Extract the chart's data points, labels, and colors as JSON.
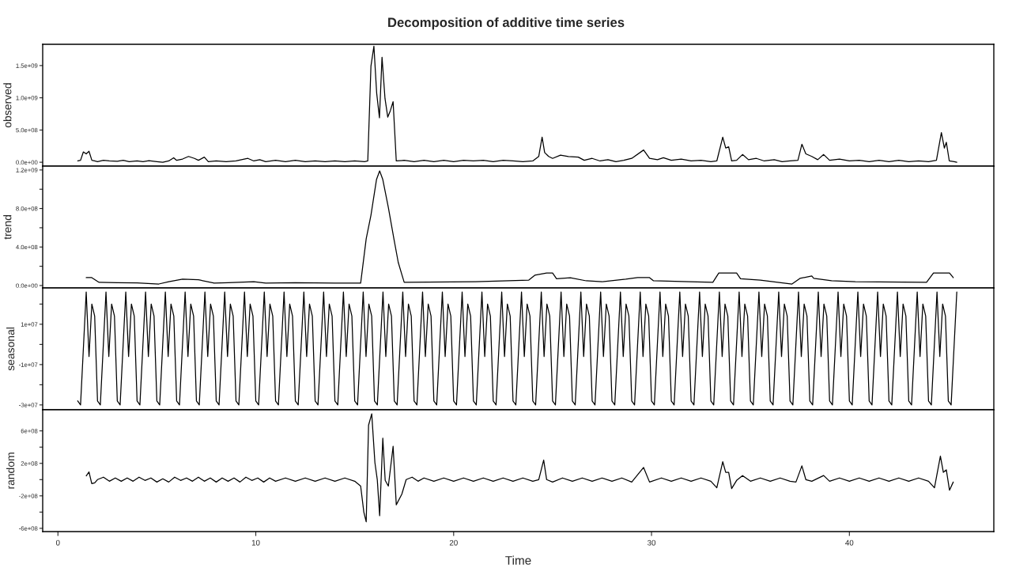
{
  "chart_data": [
    {
      "type": "line",
      "title": "Decomposition of additive time series",
      "ylabel": "observed",
      "tick_labels": "y",
      "xlim": [
        -0.77,
        47.3
      ],
      "ylim": [
        -60000000,
        1830000000
      ],
      "yticks": [
        {
          "value": 0,
          "label": "0.0e+00"
        },
        {
          "value": 500000000,
          "label": "5.0e+08"
        },
        {
          "value": 1000000000,
          "label": "1.0e+09"
        },
        {
          "value": 1500000000,
          "label": "1.5e+09"
        }
      ],
      "series": [
        {
          "color": "#000000",
          "x": [
            1.0,
            1.143,
            1.286,
            1.429,
            1.571,
            1.714,
            1.857,
            2.0,
            2.3,
            2.6,
            3.0,
            3.3,
            3.6,
            4.0,
            4.3,
            4.6,
            5.0,
            5.3,
            5.6,
            5.85,
            6.0,
            6.3,
            6.6,
            6.9,
            7.1,
            7.4,
            7.6,
            8.0,
            8.5,
            9.0,
            9.6,
            9.9,
            10.2,
            10.5,
            11.0,
            11.5,
            12.0,
            12.5,
            13.0,
            13.5,
            14.0,
            14.5,
            15.0,
            15.5,
            15.66,
            15.82,
            15.97,
            16.11,
            16.25,
            16.38,
            16.53,
            16.67,
            16.8,
            16.94,
            17.1,
            17.5,
            18,
            18.5,
            19,
            19.5,
            20,
            20.5,
            21,
            21.5,
            22,
            22.5,
            23,
            23.5,
            24.0,
            24.3,
            24.47,
            24.6,
            24.8,
            25.0,
            25.4,
            25.8,
            26.3,
            26.6,
            27,
            27.4,
            27.8,
            28.2,
            28.6,
            29.0,
            29.6,
            29.9,
            30.3,
            30.6,
            31,
            31.5,
            32,
            32.5,
            33.0,
            33.3,
            33.6,
            33.75,
            33.9,
            34.05,
            34.3,
            34.6,
            34.9,
            35.3,
            35.7,
            36.2,
            36.6,
            37.0,
            37.4,
            37.6,
            37.8,
            38.1,
            38.4,
            38.7,
            39.0,
            39.5,
            40,
            40.5,
            41,
            41.5,
            42,
            42.5,
            43,
            43.5,
            44.0,
            44.4,
            44.65,
            44.8,
            44.9,
            45.05,
            45.3,
            45.43
          ],
          "values": [
            20000000.0,
            30000000.0,
            160000000.0,
            130000000.0,
            170000000.0,
            30000000.0,
            20000000.0,
            10000000.0,
            30000000.0,
            20000000.0,
            15000000.0,
            30000000.0,
            10000000.0,
            20000000.0,
            10000000.0,
            25000000.0,
            10000000.0,
            0,
            20000000.0,
            70000000.0,
            30000000.0,
            50000000.0,
            90000000.0,
            60000000.0,
            30000000.0,
            80000000.0,
            10000000.0,
            20000000.0,
            10000000.0,
            20000000.0,
            60000000.0,
            20000000.0,
            40000000.0,
            10000000.0,
            30000000.0,
            10000000.0,
            30000000.0,
            10000000.0,
            20000000.0,
            10000000.0,
            20000000.0,
            10000000.0,
            20000000.0,
            10000000.0,
            20000000.0,
            1490000000.0,
            1800000000.0,
            1070000000.0,
            690000000.0,
            1630000000.0,
            990000000.0,
            700000000.0,
            800000000.0,
            940000000.0,
            20000000.0,
            30000000.0,
            10000000.0,
            30000000.0,
            10000000.0,
            30000000.0,
            10000000.0,
            30000000.0,
            20000000.0,
            30000000.0,
            10000000.0,
            30000000.0,
            20000000.0,
            10000000.0,
            20000000.0,
            90000000.0,
            390000000.0,
            150000000.0,
            90000000.0,
            60000000.0,
            110000000.0,
            90000000.0,
            80000000.0,
            30000000.0,
            60000000.0,
            20000000.0,
            40000000.0,
            10000000.0,
            30000000.0,
            60000000.0,
            190000000.0,
            60000000.0,
            40000000.0,
            70000000.0,
            30000000.0,
            50000000.0,
            20000000.0,
            30000000.0,
            10000000.0,
            20000000.0,
            390000000.0,
            220000000.0,
            240000000.0,
            20000000.0,
            30000000.0,
            120000000.0,
            40000000.0,
            60000000.0,
            20000000.0,
            40000000.0,
            10000000.0,
            20000000.0,
            30000000.0,
            280000000.0,
            130000000.0,
            90000000.0,
            40000000.0,
            120000000.0,
            30000000.0,
            50000000.0,
            20000000.0,
            30000000.0,
            10000000.0,
            30000000.0,
            10000000.0,
            30000000.0,
            10000000.0,
            20000000.0,
            10000000.0,
            30000000.0,
            460000000.0,
            220000000.0,
            310000000.0,
            20000000.0,
            10000000.0,
            0
          ]
        }
      ]
    },
    {
      "type": "line",
      "ylabel": "trend",
      "tick_labels": "y",
      "xlim": [
        -0.77,
        47.3
      ],
      "ylim": [
        -25000000,
        1240000000
      ],
      "yticks": [
        {
          "value": 0,
          "label": "0.0e+00"
        },
        {
          "value": 200000000,
          "label": null
        },
        {
          "value": 400000000,
          "label": "4.0e+08"
        },
        {
          "value": 600000000,
          "label": null
        },
        {
          "value": 800000000,
          "label": "8.0e+08"
        },
        {
          "value": 1000000000,
          "label": null
        },
        {
          "value": 1200000000,
          "label": "1.2e+09"
        }
      ],
      "series": [
        {
          "color": "#000000",
          "x": [
            1.43,
            1.71,
            2.08,
            3,
            4,
            5.1,
            5.6,
            6.3,
            7.1,
            7.9,
            8.6,
            9.9,
            10.5,
            12,
            14,
            15.3,
            15.58,
            15.82,
            16.1,
            16.26,
            16.42,
            16.7,
            16.98,
            17.2,
            17.5,
            21.1,
            23.8,
            24.1,
            24.7,
            25.0,
            25.2,
            25.9,
            26.7,
            27.5,
            28.7,
            29.3,
            29.9,
            30.1,
            31.9,
            33.1,
            33.4,
            34.3,
            34.5,
            35.5,
            36.7,
            37.1,
            37.5,
            38.1,
            38.2,
            39.1,
            40.3,
            43.9,
            44.25,
            45.06,
            45.25
          ],
          "values": [
            82000000.0,
            82000000.0,
            33000000.0,
            30000000.0,
            28000000.0,
            16000000.0,
            40000000.0,
            66000000.0,
            60000000.0,
            25000000.0,
            30000000.0,
            40000000.0,
            25000000.0,
            30000000.0,
            25000000.0,
            25000000.0,
            485000000.0,
            730000000.0,
            1100000000.0,
            1190000000.0,
            1100000000.0,
            810000000.0,
            485000000.0,
            240000000.0,
            33000000.0,
            40000000.0,
            57000000.0,
            107000000.0,
            130000000.0,
            130000000.0,
            70000000.0,
            80000000.0,
            49000000.0,
            40000000.0,
            66000000.0,
            82000000.0,
            82000000.0,
            49000000.0,
            40000000.0,
            33000000.0,
            130000000.0,
            130000000.0,
            70000000.0,
            57000000.0,
            25000000.0,
            16000000.0,
            74000000.0,
            99000000.0,
            74000000.0,
            49000000.0,
            40000000.0,
            33000000.0,
            130000000.0,
            130000000.0,
            82000000.0
          ]
        }
      ]
    },
    {
      "type": "line",
      "ylabel": "seasonal",
      "tick_labels": "y",
      "xlim": [
        -0.77,
        47.3
      ],
      "ylim": [
        -32400000,
        28000000
      ],
      "yticks": [
        {
          "value": -30000000,
          "label": "-3e+07"
        },
        {
          "value": -20000000,
          "label": null
        },
        {
          "value": -10000000,
          "label": "-1e+07"
        },
        {
          "value": 0,
          "label": null
        },
        {
          "value": 10000000,
          "label": "1e+07"
        },
        {
          "value": 20000000,
          "label": null
        }
      ],
      "series": [
        {
          "color": "#000000",
          "x": [
            1,
            1.143,
            1.286,
            1.429,
            1.571,
            1.714,
            1.857,
            2,
            2.143,
            2.286,
            2.429,
            2.571,
            2.714,
            2.857,
            3,
            3.143,
            3.286,
            3.429,
            3.571,
            3.714,
            3.857,
            4,
            4.143,
            4.286,
            4.429,
            4.571,
            4.714,
            4.857,
            5,
            5.143,
            5.286,
            5.429,
            5.571,
            5.714,
            5.857,
            6,
            6.143,
            6.286,
            6.429,
            6.571,
            6.714,
            6.857,
            7,
            7.143,
            7.286,
            7.429,
            7.571,
            7.714,
            7.857,
            8,
            8.143,
            8.286,
            8.429,
            8.571,
            8.714,
            8.857,
            9,
            9.143,
            9.286,
            9.429,
            9.571,
            9.714,
            9.857,
            10,
            10.143,
            10.286,
            10.429,
            10.571,
            10.714,
            10.857,
            11,
            11.143,
            11.286,
            11.429,
            11.571,
            11.714,
            11.857,
            12,
            12.143,
            12.286,
            12.429,
            12.571,
            12.714,
            12.857,
            13,
            13.143,
            13.286,
            13.429,
            13.571,
            13.714,
            13.857,
            14,
            14.143,
            14.286,
            14.429,
            14.571,
            14.714,
            14.857,
            15,
            15.143,
            15.286,
            15.429,
            15.571,
            15.714,
            15.857,
            16,
            16.143,
            16.286,
            16.429,
            16.571,
            16.714,
            16.857,
            17,
            17.143,
            17.286,
            17.429,
            17.571,
            17.714,
            17.857,
            18,
            18.143,
            18.286,
            18.429,
            18.571,
            18.714,
            18.857,
            19,
            19.143,
            19.286,
            19.429,
            19.571,
            19.714,
            19.857,
            20,
            20.143,
            20.286,
            20.429,
            20.571,
            20.714,
            20.857,
            21,
            21.143,
            21.286,
            21.429,
            21.571,
            21.714,
            21.857,
            22,
            22.143,
            22.286,
            22.429,
            22.571,
            22.714,
            22.857,
            23,
            23.143,
            23.286,
            23.429,
            23.571,
            23.714,
            23.857,
            24,
            24.143,
            24.286,
            24.429,
            24.571,
            24.714,
            24.857,
            25,
            25.143,
            25.286,
            25.429,
            25.571,
            25.714,
            25.857,
            26,
            26.143,
            26.286,
            26.429,
            26.571,
            26.714,
            26.857,
            27,
            27.143,
            27.286,
            27.429,
            27.571,
            27.714,
            27.857,
            28,
            28.143,
            28.286,
            28.429,
            28.571,
            28.714,
            28.857,
            29,
            29.143,
            29.286,
            29.429,
            29.571,
            29.714,
            29.857,
            30,
            30.143,
            30.286,
            30.429,
            30.571,
            30.714,
            30.857,
            31,
            31.143,
            31.286,
            31.429,
            31.571,
            31.714,
            31.857,
            32,
            32.143,
            32.286,
            32.429,
            32.571,
            32.714,
            32.857,
            33,
            33.143,
            33.286,
            33.429,
            33.571,
            33.714,
            33.857,
            34,
            34.143,
            34.286,
            34.429,
            34.571,
            34.714,
            34.857,
            35,
            35.143,
            35.286,
            35.429,
            35.571,
            35.714,
            35.857,
            36,
            36.143,
            36.286,
            36.429,
            36.571,
            36.714,
            36.857,
            37,
            37.143,
            37.286,
            37.429,
            37.571,
            37.714,
            37.857,
            38,
            38.143,
            38.286,
            38.429,
            38.571,
            38.714,
            38.857,
            39,
            39.143,
            39.286,
            39.429,
            39.571,
            39.714,
            39.857,
            40,
            40.143,
            40.286,
            40.429,
            40.571,
            40.714,
            40.857,
            41,
            41.143,
            41.286,
            41.429,
            41.571,
            41.714,
            41.857,
            42,
            42.143,
            42.286,
            42.429,
            42.571,
            42.714,
            42.857,
            43,
            43.143,
            43.286,
            43.429,
            43.571,
            43.714,
            43.857,
            44,
            44.143,
            44.286,
            44.429,
            44.571,
            44.714,
            44.857,
            45,
            45.143,
            45.286,
            45.429
          ],
          "values": [
            -28000000.0,
            -30000000.0,
            -2000000.0,
            26000000.0,
            -6000000.0,
            20000000.0,
            14000000.0,
            -28000000.0,
            -30000000.0,
            -2000000.0,
            26000000.0,
            -6000000.0,
            20000000.0,
            14000000.0,
            -28000000.0,
            -30000000.0,
            -2000000.0,
            26000000.0,
            -6000000.0,
            20000000.0,
            14000000.0,
            -28000000.0,
            -30000000.0,
            -2000000.0,
            26000000.0,
            -6000000.0,
            20000000.0,
            14000000.0,
            -28000000.0,
            -30000000.0,
            -2000000.0,
            26000000.0,
            -6000000.0,
            20000000.0,
            14000000.0,
            -28000000.0,
            -30000000.0,
            -2000000.0,
            26000000.0,
            -6000000.0,
            20000000.0,
            14000000.0,
            -28000000.0,
            -30000000.0,
            -2000000.0,
            26000000.0,
            -6000000.0,
            20000000.0,
            14000000.0,
            -28000000.0,
            -30000000.0,
            -2000000.0,
            26000000.0,
            -6000000.0,
            20000000.0,
            14000000.0,
            -28000000.0,
            -30000000.0,
            -2000000.0,
            26000000.0,
            -6000000.0,
            20000000.0,
            14000000.0,
            -28000000.0,
            -30000000.0,
            -2000000.0,
            26000000.0,
            -6000000.0,
            20000000.0,
            14000000.0,
            -28000000.0,
            -30000000.0,
            -2000000.0,
            26000000.0,
            -6000000.0,
            20000000.0,
            14000000.0,
            -28000000.0,
            -30000000.0,
            -2000000.0,
            26000000.0,
            -6000000.0,
            20000000.0,
            14000000.0,
            -28000000.0,
            -30000000.0,
            -2000000.0,
            26000000.0,
            -6000000.0,
            20000000.0,
            14000000.0,
            -28000000.0,
            -30000000.0,
            -2000000.0,
            26000000.0,
            -6000000.0,
            20000000.0,
            14000000.0,
            -28000000.0,
            -30000000.0,
            -2000000.0,
            26000000.0,
            -6000000.0,
            20000000.0,
            14000000.0,
            -28000000.0,
            -30000000.0,
            -2000000.0,
            26000000.0,
            -6000000.0,
            20000000.0,
            14000000.0,
            -28000000.0,
            -30000000.0,
            -2000000.0,
            26000000.0,
            -6000000.0,
            20000000.0,
            14000000.0,
            -28000000.0,
            -30000000.0,
            -2000000.0,
            26000000.0,
            -6000000.0,
            20000000.0,
            14000000.0,
            -28000000.0,
            -30000000.0,
            -2000000.0,
            26000000.0,
            -6000000.0,
            20000000.0,
            14000000.0,
            -28000000.0,
            -30000000.0,
            -2000000.0,
            26000000.0,
            -6000000.0,
            20000000.0,
            14000000.0,
            -28000000.0,
            -30000000.0,
            -2000000.0,
            26000000.0,
            -6000000.0,
            20000000.0,
            14000000.0,
            -28000000.0,
            -30000000.0,
            -2000000.0,
            26000000.0,
            -6000000.0,
            20000000.0,
            14000000.0,
            -28000000.0,
            -30000000.0,
            -2000000.0,
            26000000.0,
            -6000000.0,
            20000000.0,
            14000000.0,
            -28000000.0,
            -30000000.0,
            -2000000.0,
            26000000.0,
            -6000000.0,
            20000000.0,
            14000000.0,
            -28000000.0,
            -30000000.0,
            -2000000.0,
            26000000.0,
            -6000000.0,
            20000000.0,
            14000000.0,
            -28000000.0,
            -30000000.0,
            -2000000.0,
            26000000.0,
            -6000000.0,
            20000000.0,
            14000000.0,
            -28000000.0,
            -30000000.0,
            -2000000.0,
            26000000.0,
            -6000000.0,
            20000000.0,
            14000000.0,
            -28000000.0,
            -30000000.0,
            -2000000.0,
            26000000.0,
            -6000000.0,
            20000000.0,
            14000000.0,
            -28000000.0,
            -30000000.0,
            -2000000.0,
            26000000.0,
            -6000000.0,
            20000000.0,
            14000000.0,
            -28000000.0,
            -30000000.0,
            -2000000.0,
            26000000.0,
            -6000000.0,
            20000000.0,
            14000000.0,
            -28000000.0,
            -30000000.0,
            -2000000.0,
            26000000.0,
            -6000000.0,
            20000000.0,
            14000000.0,
            -28000000.0,
            -30000000.0,
            -2000000.0,
            26000000.0,
            -6000000.0,
            20000000.0,
            14000000.0,
            -28000000.0,
            -30000000.0,
            -2000000.0,
            26000000.0,
            -6000000.0,
            20000000.0,
            14000000.0,
            -28000000.0,
            -30000000.0,
            -2000000.0,
            26000000.0,
            -6000000.0,
            20000000.0,
            14000000.0,
            -28000000.0,
            -30000000.0,
            -2000000.0,
            26000000.0,
            -6000000.0,
            20000000.0,
            14000000.0,
            -28000000.0,
            -30000000.0,
            -2000000.0,
            26000000.0,
            -6000000.0,
            20000000.0,
            14000000.0,
            -28000000.0,
            -30000000.0,
            -2000000.0,
            26000000.0,
            -6000000.0,
            20000000.0,
            14000000.0,
            -28000000.0,
            -30000000.0,
            -2000000.0,
            26000000.0,
            -6000000.0,
            20000000.0,
            14000000.0,
            -28000000.0,
            -30000000.0,
            -2000000.0,
            26000000.0,
            -6000000.0,
            20000000.0,
            14000000.0,
            -28000000.0,
            -30000000.0,
            -2000000.0,
            26000000.0,
            -6000000.0,
            20000000.0,
            14000000.0,
            -28000000.0,
            -30000000.0,
            -2000000.0,
            26000000.0,
            -6000000.0,
            20000000.0,
            14000000.0,
            -28000000.0,
            -30000000.0,
            -2000000.0,
            26000000.0,
            -6000000.0,
            20000000.0,
            14000000.0,
            -28000000.0,
            -30000000.0,
            -2000000.0,
            26000000.0,
            -6000000.0,
            20000000.0,
            14000000.0,
            -28000000.0,
            -30000000.0,
            -2000000.0,
            26000000.0,
            -6000000.0,
            20000000.0,
            14000000.0,
            -28000000.0,
            -30000000.0,
            -2000000.0,
            26000000.0
          ]
        }
      ]
    },
    {
      "type": "line",
      "ylabel": "random",
      "xlabel": "Time",
      "xlim": [
        -0.77,
        47.3
      ],
      "ylim": [
        -640000000,
        860000000
      ],
      "xticks": [
        0,
        10,
        20,
        30,
        40
      ],
      "yticks": [
        {
          "value": -600000000,
          "label": "-6e+08"
        },
        {
          "value": -400000000,
          "label": null
        },
        {
          "value": -200000000,
          "label": "-2e+08"
        },
        {
          "value": 0,
          "label": null
        },
        {
          "value": 200000000,
          "label": "2e+08"
        },
        {
          "value": 400000000,
          "label": null
        },
        {
          "value": 600000000,
          "label": "6e+08"
        }
      ],
      "series": [
        {
          "color": "#000000",
          "x": [
            1.43,
            1.57,
            1.71,
            1.86,
            2.0,
            2.3,
            2.6,
            2.9,
            3.2,
            3.5,
            3.8,
            4.1,
            4.4,
            4.7,
            5.0,
            5.3,
            5.6,
            5.9,
            6.2,
            6.5,
            6.8,
            7.1,
            7.4,
            7.7,
            8.0,
            8.3,
            8.6,
            8.9,
            9.2,
            9.5,
            9.8,
            10.1,
            10.4,
            10.7,
            11,
            11.5,
            12,
            12.5,
            13,
            13.5,
            14,
            14.5,
            15,
            15.3,
            15.46,
            15.58,
            15.7,
            15.86,
            16.02,
            16.14,
            16.26,
            16.42,
            16.54,
            16.7,
            16.94,
            17.1,
            17.38,
            17.6,
            17.9,
            18.2,
            18.5,
            19,
            19.5,
            20,
            20.5,
            21,
            21.5,
            22,
            22.5,
            23,
            23.5,
            24,
            24.3,
            24.55,
            24.7,
            25,
            25.5,
            26,
            26.5,
            27,
            27.5,
            28,
            28.5,
            29,
            29.6,
            29.9,
            30.5,
            31,
            31.5,
            32,
            32.5,
            33.0,
            33.3,
            33.6,
            33.75,
            33.9,
            34.05,
            34.3,
            34.6,
            35,
            35.5,
            36,
            36.5,
            37.0,
            37.3,
            37.6,
            37.8,
            38.1,
            38.7,
            39,
            39.5,
            40,
            40.5,
            41,
            41.5,
            42,
            42.5,
            43,
            43.5,
            44,
            44.3,
            44.6,
            44.75,
            44.9,
            45.06,
            45.25
          ],
          "values": [
            46000000.0,
            95000000.0,
            -50000000.0,
            -40000000.0,
            0,
            30000000.0,
            -20000000.0,
            20000000.0,
            -20000000.0,
            20000000.0,
            -20000000.0,
            30000000.0,
            -10000000.0,
            20000000.0,
            -30000000.0,
            10000000.0,
            -30000000.0,
            30000000.0,
            -10000000.0,
            20000000.0,
            -20000000.0,
            30000000.0,
            -20000000.0,
            20000000.0,
            -30000000.0,
            20000000.0,
            -20000000.0,
            20000000.0,
            -30000000.0,
            30000000.0,
            -10000000.0,
            20000000.0,
            -30000000.0,
            20000000.0,
            -20000000.0,
            20000000.0,
            -20000000.0,
            20000000.0,
            -20000000.0,
            20000000.0,
            -20000000.0,
            20000000.0,
            -20000000.0,
            -80000000.0,
            -400000000.0,
            -520000000.0,
            670000000.0,
            810000000.0,
            210000000.0,
            0,
            -445000000.0,
            510000000.0,
            -10000000.0,
            -80000000.0,
            410000000.0,
            -310000000.0,
            -180000000.0,
            0,
            30000000.0,
            -20000000.0,
            20000000.0,
            -20000000.0,
            20000000.0,
            -20000000.0,
            20000000.0,
            -20000000.0,
            20000000.0,
            -20000000.0,
            20000000.0,
            -20000000.0,
            20000000.0,
            -20000000.0,
            0,
            240000000.0,
            0,
            -30000000.0,
            20000000.0,
            -20000000.0,
            20000000.0,
            -20000000.0,
            20000000.0,
            -20000000.0,
            20000000.0,
            -30000000.0,
            150000000.0,
            -30000000.0,
            20000000.0,
            -20000000.0,
            20000000.0,
            -20000000.0,
            20000000.0,
            -20000000.0,
            -100000000.0,
            220000000.0,
            90000000.0,
            90000000.0,
            -110000000.0,
            -10000000.0,
            50000000.0,
            -20000000.0,
            20000000.0,
            -20000000.0,
            20000000.0,
            -20000000.0,
            -30000000.0,
            170000000.0,
            0,
            -20000000.0,
            50000000.0,
            -20000000.0,
            20000000.0,
            -20000000.0,
            20000000.0,
            -20000000.0,
            20000000.0,
            -20000000.0,
            20000000.0,
            -20000000.0,
            20000000.0,
            -20000000.0,
            -100000000.0,
            290000000.0,
            90000000.0,
            120000000.0,
            -130000000.0,
            -30000000.0
          ]
        }
      ]
    }
  ]
}
